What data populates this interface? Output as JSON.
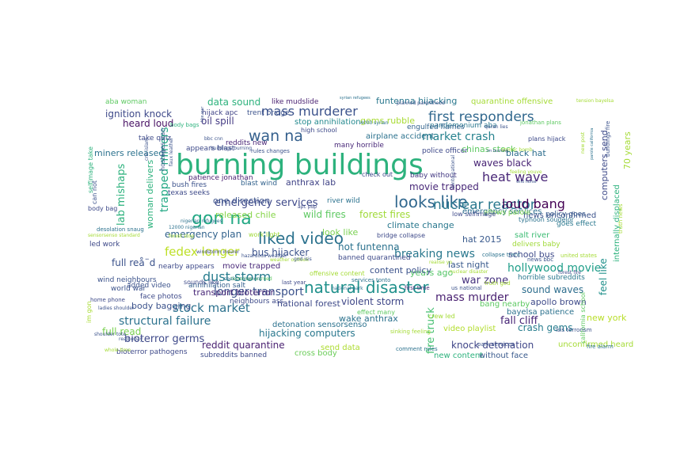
{
  "words": [
    {
      "text": "burning buildings",
      "weight": 100,
      "color": "#2db27d"
    },
    {
      "text": "gon na",
      "weight": 58,
      "color": "#22a884"
    },
    {
      "text": "liked video",
      "weight": 52,
      "color": "#2c728e"
    },
    {
      "text": "looks like",
      "weight": 50,
      "color": "#31688e"
    },
    {
      "text": "natural disaster",
      "weight": 48,
      "color": "#21918c"
    },
    {
      "text": "wan na",
      "weight": 42,
      "color": "#35608d"
    },
    {
      "text": "mass murderer",
      "weight": 38,
      "color": "#3b528b"
    },
    {
      "text": "first responders",
      "weight": 38,
      "color": "#31688e"
    },
    {
      "text": "nuclear reactor",
      "weight": 36,
      "color": "#2a788e"
    },
    {
      "text": "dust storm",
      "weight": 36,
      "color": "#287d8e"
    },
    {
      "text": "heat wave",
      "weight": 34,
      "color": "#482677"
    },
    {
      "text": "loud bang",
      "weight": 34,
      "color": "#440154"
    },
    {
      "text": "fedex longer",
      "weight": 33,
      "color": "#bddf26"
    },
    {
      "text": "stock market",
      "weight": 32,
      "color": "#2c728e"
    },
    {
      "text": "emergency services",
      "weight": 30,
      "color": "#3e4989"
    },
    {
      "text": "longer transport",
      "weight": 30,
      "color": "#3b528b"
    },
    {
      "text": "structural failure",
      "weight": 29,
      "color": "#2c728e"
    },
    {
      "text": "mass murder",
      "weight": 28,
      "color": "#481f70"
    },
    {
      "text": "market crash",
      "weight": 27,
      "color": "#26828e"
    },
    {
      "text": "hollywood movie",
      "weight": 26,
      "color": "#1f9e89"
    },
    {
      "text": "breaking news",
      "weight": 26,
      "color": "#2a788e"
    },
    {
      "text": "trapped miners",
      "weight": 25,
      "color": "#22a884"
    },
    {
      "text": "lab mishaps",
      "weight": 24,
      "color": "#2db27d"
    },
    {
      "text": "fire truck",
      "weight": 24,
      "color": "#44bf70"
    },
    {
      "text": "bioterror germs",
      "weight": 24,
      "color": "#3e4989"
    },
    {
      "text": "movie trapped",
      "weight": 23,
      "color": "#482878"
    },
    {
      "text": "fall cliff",
      "weight": 23,
      "color": "#482677"
    },
    {
      "text": "war zone",
      "weight": 22,
      "color": "#46327e"
    },
    {
      "text": "ignition knock",
      "weight": 22,
      "color": "#3e4989"
    },
    {
      "text": "reddit quarantine",
      "weight": 22,
      "color": "#481f70"
    },
    {
      "text": "knock detonation",
      "weight": 22,
      "color": "#404688"
    },
    {
      "text": "feel like",
      "weight": 22,
      "color": "#21918c"
    },
    {
      "text": "emergency plan",
      "weight": 21,
      "color": "#33638d"
    },
    {
      "text": "hijacking computers",
      "weight": 21,
      "color": "#2a788e"
    },
    {
      "text": "wild fires",
      "weight": 21,
      "color": "#5ec962"
    },
    {
      "text": "forest fires",
      "weight": 21,
      "color": "#a0da39"
    },
    {
      "text": "70 years",
      "weight": 20,
      "color": "#a5db36"
    },
    {
      "text": "crash gems",
      "weight": 20,
      "color": "#287d8e"
    },
    {
      "text": "sound waves",
      "weight": 20,
      "color": "#2e6e8e"
    },
    {
      "text": "full read",
      "weight": 20,
      "color": "#7ad151"
    },
    {
      "text": "computers send",
      "weight": 19,
      "color": "#3e4a89"
    },
    {
      "text": "violent storm",
      "weight": 19,
      "color": "#3f4788"
    },
    {
      "text": "data sound",
      "weight": 19,
      "color": "#2db27d"
    },
    {
      "text": "oil spill",
      "weight": 19,
      "color": "#443a83"
    },
    {
      "text": "funtenna hijacking",
      "weight": 19,
      "color": "#2a788e"
    },
    {
      "text": "heard loud",
      "weight": 18,
      "color": "#471063"
    },
    {
      "text": "bus hijacker",
      "weight": 18,
      "color": "#3b528b"
    },
    {
      "text": "hot funtenna",
      "weight": 18,
      "color": "#2c728e"
    },
    {
      "text": "full reå¨d",
      "weight": 18,
      "color": "#3b528b"
    },
    {
      "text": "woman delivers",
      "weight": 18,
      "color": "#2db27d"
    },
    {
      "text": "waves black",
      "weight": 18,
      "color": "#482475"
    },
    {
      "text": "apollo brown",
      "weight": 17,
      "color": "#3e4a89"
    },
    {
      "text": "body bagging",
      "weight": 17,
      "color": "#3b528b"
    },
    {
      "text": "miners released",
      "weight": 17,
      "color": "#2c728e"
    },
    {
      "text": "transport bioterror",
      "weight": 17,
      "color": "#482878"
    },
    {
      "text": "anthrax lab",
      "weight": 17,
      "color": "#414487"
    },
    {
      "text": "chinas stock",
      "weight": 17,
      "color": "#5ec962"
    },
    {
      "text": "look like",
      "weight": 17,
      "color": "#7ad151"
    },
    {
      "text": "climate change",
      "weight": 16,
      "color": "#2a788e"
    },
    {
      "text": "released chile",
      "weight": 16,
      "color": "#86d549"
    },
    {
      "text": "quarantine offensive",
      "weight": 16,
      "color": "#a5db36"
    },
    {
      "text": "gems rubble",
      "weight": 16,
      "color": "#a8db34"
    },
    {
      "text": "black hat",
      "weight": 16,
      "color": "#2e6e8e"
    },
    {
      "text": "hat 2015",
      "weight": 16,
      "color": "#38598c"
    },
    {
      "text": "internally displaced",
      "weight": 16,
      "color": "#2db27d"
    },
    {
      "text": "years ago",
      "weight": 16,
      "color": "#54c568"
    },
    {
      "text": "content policy",
      "weight": 16,
      "color": "#3b528b"
    },
    {
      "text": "last night",
      "weight": 15,
      "color": "#38598c"
    },
    {
      "text": "school bus",
      "weight": 15,
      "color": "#3e4a89"
    },
    {
      "text": "wake anthrax",
      "weight": 15,
      "color": "#2c728e"
    },
    {
      "text": "new york",
      "weight": 15,
      "color": "#b8de29"
    },
    {
      "text": "stop annihilation",
      "weight": 15,
      "color": "#23898e"
    },
    {
      "text": "send data",
      "weight": 15,
      "color": "#addc30"
    },
    {
      "text": "national forest",
      "weight": 14,
      "color": "#3e4a89"
    },
    {
      "text": "salt river",
      "weight": 14,
      "color": "#3dbc74"
    },
    {
      "text": "unconfirmed heard",
      "weight": 14,
      "color": "#a5db36"
    },
    {
      "text": "bayelsa patience",
      "weight": 14,
      "color": "#2c728e"
    },
    {
      "text": "news unconfirmed",
      "weight": 14,
      "color": "#3b528b"
    },
    {
      "text": "video playlist",
      "weight": 14,
      "color": "#b2dd2d"
    },
    {
      "text": "bang nearby",
      "weight": 14,
      "color": "#5ec962"
    },
    {
      "text": "one direction",
      "weight": 14,
      "color": "#3b528b"
    },
    {
      "text": "emergency services",
      "weight": 14,
      "color": "#2e6e8e"
    },
    {
      "text": "airplane accident",
      "weight": 14,
      "color": "#2c728e"
    },
    {
      "text": "blast wind",
      "weight": 14,
      "color": "#33638d"
    },
    {
      "text": "police officer",
      "weight": 13,
      "color": "#3e4989"
    },
    {
      "text": "baby without",
      "weight": 13,
      "color": "#443983"
    },
    {
      "text": "movie trapped",
      "weight": 13,
      "color": "#482878"
    },
    {
      "text": "detonation sensorsenso",
      "weight": 13,
      "color": "#2c728e"
    },
    {
      "text": "new content",
      "weight": 13,
      "color": "#2db27d"
    },
    {
      "text": "without face",
      "weight": 13,
      "color": "#38598c"
    },
    {
      "text": "subreddits banned",
      "weight": 13,
      "color": "#3e4a89"
    },
    {
      "text": "cross body",
      "weight": 13,
      "color": "#6ccd5a"
    },
    {
      "text": "bioterror pathogens",
      "weight": 13,
      "color": "#3e4989"
    },
    {
      "text": "delivers baby",
      "weight": 13,
      "color": "#a0da39"
    },
    {
      "text": "horrible subreddits",
      "weight": 13,
      "color": "#2a788e"
    },
    {
      "text": "banned quarantined",
      "weight": 13,
      "color": "#3e4a89"
    },
    {
      "text": "neighbours ass",
      "weight": 13,
      "color": "#3e4a89"
    },
    {
      "text": "world war",
      "weight": 12,
      "color": "#3b528b"
    },
    {
      "text": "wind neighbours",
      "weight": 12,
      "color": "#3b528b"
    },
    {
      "text": "nearby appears",
      "weight": 12,
      "color": "#3e4a89"
    },
    {
      "text": "face photos",
      "weight": 12,
      "color": "#3e4a89"
    },
    {
      "text": "added video",
      "weight": 12,
      "color": "#3b528b"
    },
    {
      "text": "annihilation salt",
      "weight": 12,
      "color": "#35608d"
    },
    {
      "text": "sounds like",
      "weight": 12,
      "color": "#3e4a89"
    },
    {
      "text": "like mudslide",
      "weight": 12,
      "color": "#481f70"
    },
    {
      "text": "hijack apc",
      "weight": 12,
      "color": "#414487"
    },
    {
      "text": "trent bridge",
      "weight": 12,
      "color": "#3b528b"
    },
    {
      "text": "take quiz",
      "weight": 12,
      "color": "#3e4a89"
    },
    {
      "text": "appears blast",
      "weight": 12,
      "color": "#3e4a89"
    },
    {
      "text": "reddits new",
      "weight": 12,
      "color": "#482475"
    },
    {
      "text": "many horrible",
      "weight": 12,
      "color": "#482878"
    },
    {
      "text": "pandemonium aba",
      "weight": 12,
      "color": "#2a788e"
    },
    {
      "text": "engulfed flames",
      "weight": 12,
      "color": "#33638d"
    },
    {
      "text": "aba woman",
      "weight": 12,
      "color": "#5ec962"
    },
    {
      "text": "patience jonathan",
      "weight": 12,
      "color": "#481f70"
    },
    {
      "text": "bush fires",
      "weight": 12,
      "color": "#3b528b"
    },
    {
      "text": "texas seeks",
      "weight": 11,
      "color": "#3e4a89"
    },
    {
      "text": "river wild",
      "weight": 12,
      "color": "#2c728e"
    },
    {
      "text": "allows parole",
      "weight": 12,
      "color": "#7ad151"
    },
    {
      "text": "policy goes",
      "weight": 12,
      "color": "#38598c"
    },
    {
      "text": "goes effect",
      "weight": 12,
      "color": "#2a788e"
    },
    {
      "text": "led work",
      "weight": 12,
      "color": "#3e4989"
    },
    {
      "text": "work light",
      "weight": 12,
      "color": "#a0da39"
    },
    {
      "text": "im gon",
      "weight": 11,
      "color": "#a8db34"
    },
    {
      "text": "body bag",
      "weight": 11,
      "color": "#3e4a89"
    },
    {
      "text": "can not",
      "weight": 11,
      "color": "#3b528b"
    },
    {
      "text": "selfimage take",
      "weight": 11,
      "color": "#2db27d"
    },
    {
      "text": "bridge collapse",
      "weight": 11,
      "color": "#3e4a89"
    },
    {
      "text": "crew led",
      "weight": 11,
      "color": "#a5db36"
    },
    {
      "text": "effect many",
      "weight": 11,
      "color": "#5ec962"
    },
    {
      "text": "offensive content",
      "weight": 11,
      "color": "#a5db36"
    },
    {
      "text": "last year",
      "weight": 11,
      "color": "#3e4989"
    },
    {
      "text": "first time",
      "weight": 10,
      "color": "#482878"
    },
    {
      "text": "check out",
      "weight": 10,
      "color": "#3e4a89"
    },
    {
      "text": "low selfimage",
      "weight": 11,
      "color": "#3e4a89"
    },
    {
      "text": "high school",
      "weight": 11,
      "color": "#3e4a89"
    },
    {
      "text": "plans hijack",
      "weight": 11,
      "color": "#3e4a89"
    },
    {
      "text": "jonathan plans",
      "weight": 11,
      "color": "#5ec962"
    },
    {
      "text": "park services",
      "weight": 10,
      "color": "#3b528b"
    },
    {
      "text": "california school",
      "weight": 10,
      "color": "#5ec962"
    },
    {
      "text": "typhoon soudelor",
      "weight": 10,
      "color": "#2c728e"
    },
    {
      "text": "body bags",
      "weight": 10,
      "color": "#2db27d"
    },
    {
      "text": "rules changes",
      "weight": 9,
      "color": "#3b528b"
    },
    {
      "text": "services tonto",
      "weight": 9,
      "color": "#2c728e"
    },
    {
      "text": "national park",
      "weight": 9,
      "color": "#2c728e"
    },
    {
      "text": "sinking feeling",
      "weight": 8,
      "color": "#a5db36"
    },
    {
      "text": "comment rules",
      "weight": 10,
      "color": "#2c728e"
    },
    {
      "text": "isis terrorism",
      "weight": 8,
      "color": "#3b528b"
    },
    {
      "text": "fire alarm",
      "weight": 8,
      "color": "#2c728e"
    },
    {
      "text": "truth god",
      "weight": 8,
      "color": "#a5db36"
    },
    {
      "text": "us national",
      "weight": 8,
      "color": "#3b528b"
    },
    {
      "text": "news bbc",
      "weight": 8,
      "color": "#3b528b"
    },
    {
      "text": "collapse trent",
      "weight": 8,
      "color": "#2c728e"
    },
    {
      "text": "united states",
      "weight": 8,
      "color": "#a5db36"
    },
    {
      "text": "nuclear disaster",
      "weight": 8,
      "color": "#a5db36"
    },
    {
      "text": "forest fire",
      "weight": 8,
      "color": "#3e4a89"
    },
    {
      "text": "home phone",
      "weight": 8,
      "color": "#3e4a89"
    },
    {
      "text": "ladies shoulder",
      "weight": 7,
      "color": "#3b528b"
    },
    {
      "text": "whole time",
      "weight": 7,
      "color": "#a5db36"
    },
    {
      "text": "read ebay",
      "weight": 8,
      "color": "#3b528b"
    },
    {
      "text": "shoulder tote",
      "weight": 7,
      "color": "#3b528b"
    },
    {
      "text": "desolation snaug",
      "weight": 6,
      "color": "#2c728e"
    },
    {
      "text": "sensorsenso standard",
      "weight": 7,
      "color": "#a5db36"
    },
    {
      "text": "12000 nigerian",
      "weight": 6,
      "color": "#2c728e"
    },
    {
      "text": "forest stop",
      "weight": 8,
      "color": "#a5db36"
    },
    {
      "text": "nigerian refugees",
      "weight": 7,
      "color": "#2c728e"
    },
    {
      "text": "hostages iran",
      "weight": 7,
      "color": "#3b528b"
    },
    {
      "text": "faux leather",
      "weight": 7,
      "color": "#3b528b"
    },
    {
      "text": "terrorism warned",
      "weight": 7,
      "color": "#5ec962"
    },
    {
      "text": "apc pdp",
      "weight": 9,
      "color": "#3e4989"
    },
    {
      "text": "windstorm insurer",
      "weight": 7,
      "color": "#3e4a89"
    },
    {
      "text": "hazardous weather",
      "weight": 8,
      "color": "#3b528b"
    },
    {
      "text": "weather outlook",
      "weight": 7,
      "color": "#a5db36"
    },
    {
      "text": "god isis",
      "weight": 8,
      "color": "#3b528b"
    },
    {
      "text": "buildings burning",
      "weight": 7,
      "color": "#3b528b"
    },
    {
      "text": "cnn islam",
      "weight": 7,
      "color": "#3b528b"
    },
    {
      "text": "bbc cnn",
      "weight": 7,
      "color": "#3b528b"
    },
    {
      "text": "like war",
      "weight": 7,
      "color": "#3b528b"
    },
    {
      "text": "planned parenthood",
      "weight": 7,
      "color": "#3b528b"
    },
    {
      "text": "syrian refugees",
      "weight": 7,
      "color": "#2c728e"
    },
    {
      "text": "4000 syrian",
      "weight": 6,
      "color": "#2c728e"
    },
    {
      "text": "quran lies",
      "weight": 6,
      "color": "#3b528b"
    },
    {
      "text": "atomic bomb",
      "weight": 6,
      "color": "#a5db36"
    },
    {
      "text": "feeling youve",
      "weight": 7,
      "color": "#a5db36"
    },
    {
      "text": "new post",
      "weight": 6,
      "color": "#a5db36"
    },
    {
      "text": "buildings fire",
      "weight": 7,
      "color": "#3b528b"
    },
    {
      "text": "tension bayelsa",
      "weight": 7,
      "color": "#a5db36"
    },
    {
      "text": "tonto national",
      "weight": 7,
      "color": "#3b528b"
    },
    {
      "text": "truth news",
      "weight": 7,
      "color": "#a5db36"
    },
    {
      "text": "realise yo",
      "weight": 7,
      "color": "#a5db36"
    },
    {
      "text": "seeks comment",
      "weight": 8,
      "color": "#2c728e"
    },
    {
      "text": "im burning",
      "weight": 7,
      "color": "#3b528b"
    },
    {
      "text": "wild horse",
      "weight": 7,
      "color": "#3b528b"
    },
    {
      "text": "parole california",
      "weight": 8,
      "color": "#2c728e"
    },
    {
      "text": "3g whole",
      "weight": 7,
      "color": "#a5db36"
    },
    {
      "text": "phone realise",
      "weight": 7,
      "color": "#3b528b"
    },
    {
      "text": "collapse",
      "weight": 6,
      "color": "#3b528b"
    },
    {
      "text": "changes",
      "weight": 6,
      "color": "#3b528b"
    },
    {
      "text": "horrible sinking",
      "weight": 6,
      "color": "#a5db36"
    }
  ]
}
